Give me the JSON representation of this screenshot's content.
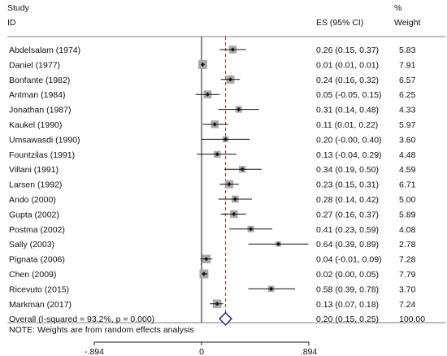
{
  "chart_data": {
    "type": "forest",
    "header": {
      "study_line1": "Study",
      "study_line2": "ID",
      "es": "ES (95% CI)",
      "weight_line1": "%",
      "weight_line2": "Weight"
    },
    "studies": [
      {
        "label": "Abdelsalam (1974)",
        "es": 0.26,
        "lo": 0.15,
        "hi": 0.37,
        "ci_text": "0.26 (0.15, 0.37)",
        "weight": "5.83"
      },
      {
        "label": "Daniel (1977)",
        "es": 0.01,
        "lo": 0.01,
        "hi": 0.01,
        "ci_text": "0.01 (0.01, 0.01)",
        "weight": "7.91"
      },
      {
        "label": "Bonfante (1982)",
        "es": 0.24,
        "lo": 0.16,
        "hi": 0.32,
        "ci_text": "0.24 (0.16, 0.32)",
        "weight": "6.57"
      },
      {
        "label": "Antman (1984)",
        "es": 0.05,
        "lo": -0.05,
        "hi": 0.15,
        "ci_text": "0.05 (-0.05, 0.15)",
        "weight": "6.25"
      },
      {
        "label": "Jonathan (1987)",
        "es": 0.31,
        "lo": 0.14,
        "hi": 0.48,
        "ci_text": "0.31 (0.14, 0.48)",
        "weight": "4.33"
      },
      {
        "label": "Kaukel (1990)",
        "es": 0.11,
        "lo": 0.01,
        "hi": 0.22,
        "ci_text": "0.11 (0.01, 0.22)",
        "weight": "5.97"
      },
      {
        "label": "Umsawasdi (1990)",
        "es": 0.2,
        "lo": -0.0,
        "hi": 0.4,
        "ci_text": "0.20 (-0.00, 0.40)",
        "weight": "3.60"
      },
      {
        "label": "Fountzilas (1991)",
        "es": 0.13,
        "lo": -0.04,
        "hi": 0.29,
        "ci_text": "0.13 (-0.04, 0.29)",
        "weight": "4.48"
      },
      {
        "label": "Villani (1991)",
        "es": 0.34,
        "lo": 0.19,
        "hi": 0.5,
        "ci_text": "0.34 (0.19, 0.50)",
        "weight": "4.59"
      },
      {
        "label": "Larsen (1992)",
        "es": 0.23,
        "lo": 0.15,
        "hi": 0.31,
        "ci_text": "0.23 (0.15, 0.31)",
        "weight": "6.71"
      },
      {
        "label": "Ando (2000)",
        "es": 0.28,
        "lo": 0.14,
        "hi": 0.42,
        "ci_text": "0.28 (0.14, 0.42)",
        "weight": "5.00"
      },
      {
        "label": "Gupta (2002)",
        "es": 0.27,
        "lo": 0.16,
        "hi": 0.37,
        "ci_text": "0.27 (0.16, 0.37)",
        "weight": "5.89"
      },
      {
        "label": "Postma (2002)",
        "es": 0.41,
        "lo": 0.23,
        "hi": 0.59,
        "ci_text": "0.41 (0.23, 0.59)",
        "weight": "4.08"
      },
      {
        "label": "Sally (2003)",
        "es": 0.64,
        "lo": 0.39,
        "hi": 0.89,
        "ci_text": "0.64 (0.39, 0.89)",
        "weight": "2.78"
      },
      {
        "label": "Pignata (2006)",
        "es": 0.04,
        "lo": -0.01,
        "hi": 0.09,
        "ci_text": "0.04 (-0.01, 0.09)",
        "weight": "7.28"
      },
      {
        "label": "Chen (2009)",
        "es": 0.02,
        "lo": 0.0,
        "hi": 0.05,
        "ci_text": "0.02 (0.00, 0.05)",
        "weight": "7.79"
      },
      {
        "label": "Ricevuto (2015)",
        "es": 0.58,
        "lo": 0.39,
        "hi": 0.78,
        "ci_text": "0.58 (0.39, 0.78)",
        "weight": "3.70"
      },
      {
        "label": "Markman (2017)",
        "es": 0.13,
        "lo": 0.07,
        "hi": 0.18,
        "ci_text": "0.13 (0.07, 0.18)",
        "weight": "7.24"
      }
    ],
    "overall": {
      "label": "Overall  (I-squared = 93.2%, p = 0.000)",
      "es": 0.2,
      "lo": 0.15,
      "hi": 0.25,
      "ci_text": "0.20 (0.15, 0.25)",
      "weight": "100.00"
    },
    "note": "NOTE: Weights are from random effects analysis",
    "x_ticks": [
      {
        "value": -0.894,
        "label": "-.894"
      },
      {
        "value": 0,
        "label": "0"
      },
      {
        "value": 0.894,
        "label": ".894"
      }
    ],
    "xlim": [
      -0.894,
      0.894
    ],
    "null_line": 0,
    "colors": {
      "overall_line": "#b5332e",
      "diamond": "#1a1a8c",
      "box": "#a9a9a9",
      "point": "#111111"
    }
  }
}
